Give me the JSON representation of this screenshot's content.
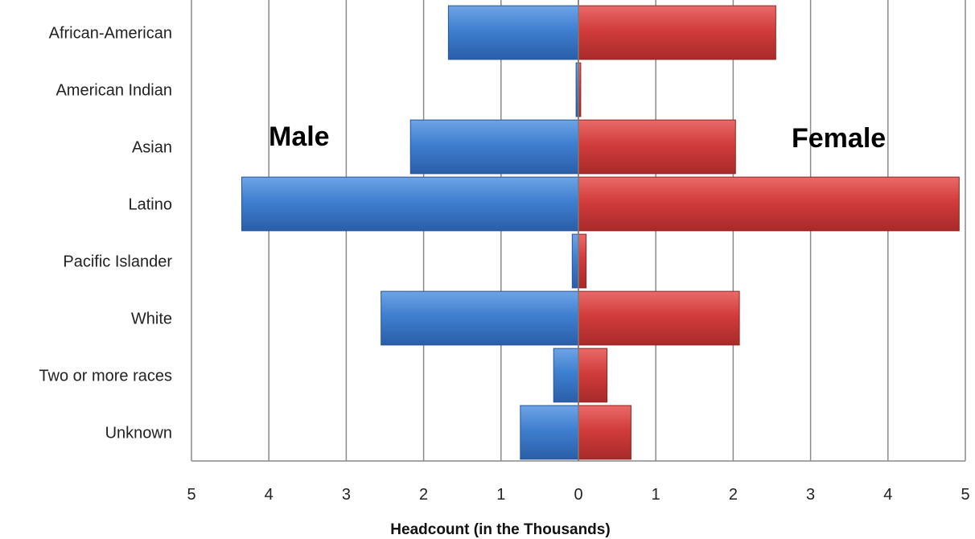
{
  "chart_data": {
    "type": "bar",
    "orientation": "horizontal",
    "layout": "population-pyramid",
    "categories": [
      "African-American",
      "American Indian",
      "Asian",
      "Latino",
      "Pacific Islander",
      "White",
      "Two or more races",
      "Unknown"
    ],
    "series": [
      {
        "name": "Male",
        "side": "left",
        "color": "#3f7fd0",
        "values": [
          1.68,
          0.03,
          2.17,
          4.35,
          0.08,
          2.55,
          0.32,
          0.75
        ]
      },
      {
        "name": "Female",
        "side": "right",
        "color": "#d23c3c",
        "values": [
          2.55,
          0.03,
          2.03,
          4.92,
          0.1,
          2.08,
          0.37,
          0.68
        ]
      }
    ],
    "xlabel": "Headcount (in the Thousands)",
    "ylabel": "",
    "xlim": [
      -5,
      5
    ],
    "xticks": [
      -5,
      -4,
      -3,
      -2,
      -1,
      0,
      1,
      2,
      3,
      4,
      5
    ],
    "xtick_labels": [
      "5",
      "4",
      "3",
      "2",
      "1",
      "0",
      "1",
      "2",
      "3",
      "4",
      "5"
    ],
    "grid": true,
    "legend": "none"
  }
}
